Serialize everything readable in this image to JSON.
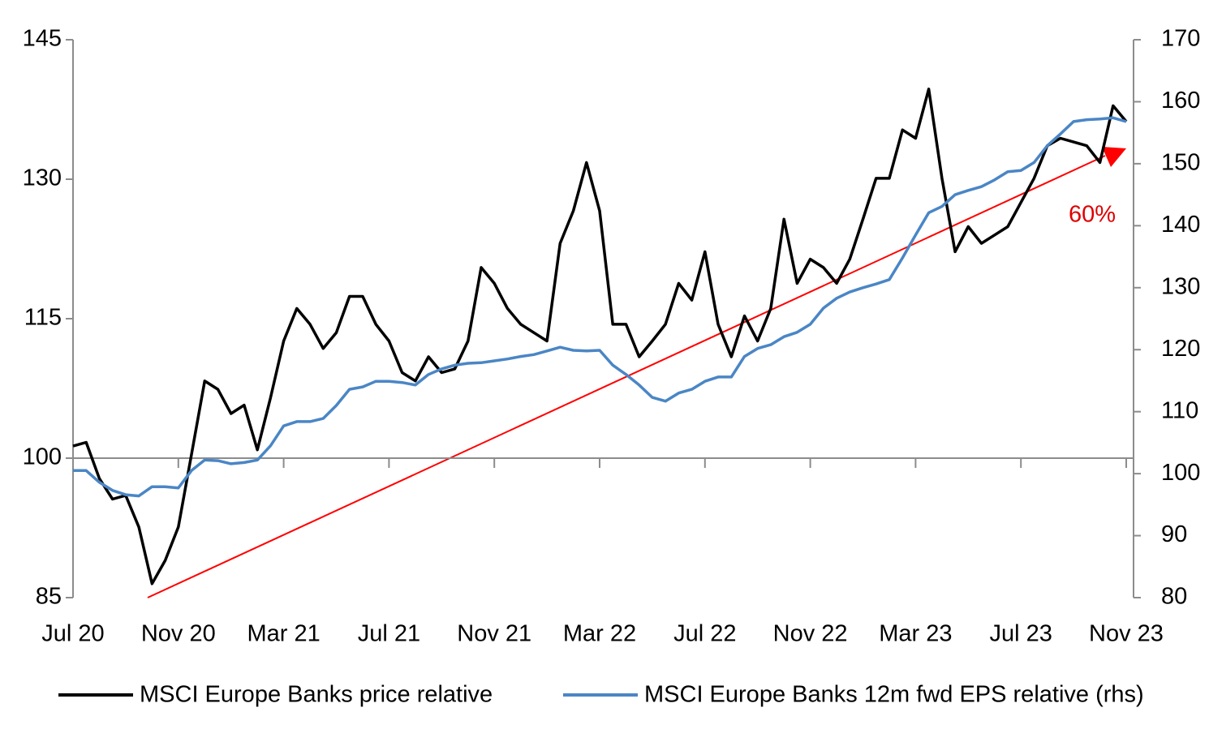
{
  "chart_data": {
    "type": "line",
    "x": [
      "Jul 20",
      null,
      null,
      null,
      null,
      null,
      null,
      null,
      "Nov 20",
      null,
      null,
      null,
      null,
      null,
      null,
      null,
      "Mar 21",
      null,
      null,
      null,
      null,
      null,
      null,
      null,
      "Jul 21",
      null,
      null,
      null,
      null,
      null,
      null,
      null,
      "Nov 21",
      null,
      null,
      null,
      null,
      null,
      null,
      null,
      "Mar 22",
      null,
      null,
      null,
      null,
      null,
      null,
      null,
      "Jul 22",
      null,
      null,
      null,
      null,
      null,
      null,
      null,
      "Nov 22",
      null,
      null,
      null,
      null,
      null,
      null,
      null,
      "Mar 23",
      null,
      null,
      null,
      null,
      null,
      null,
      null,
      "Jul 23",
      null,
      null,
      null,
      null,
      null,
      null,
      null,
      "Nov 23"
    ],
    "series": [
      {
        "name": "MSCI Europe Banks price relative",
        "color": "#000000",
        "values": [
          101.3,
          101.7,
          97.8,
          95.6,
          96,
          92.6,
          86.5,
          89,
          92.6,
          100.4,
          108.3,
          107.4,
          104.8,
          105.7,
          100.9,
          106.5,
          112.6,
          116.1,
          114.4,
          111.8,
          113.5,
          117.4,
          117.4,
          114.4,
          112.6,
          109.2,
          108.3,
          110.9,
          109.2,
          109.6,
          112.6,
          120.5,
          118.8,
          116.1,
          114.4,
          113.5,
          112.6,
          123.1,
          126.6,
          131.8,
          126.6,
          114.4,
          114.4,
          110.9,
          112.6,
          114.4,
          118.8,
          117,
          122.2,
          114.4,
          110.9,
          115.3,
          112.6,
          116.1,
          125.7,
          118.8,
          121.4,
          120.5,
          118.8,
          121.4,
          125.7,
          130.1,
          130.1,
          135.3,
          134.4,
          139.7,
          130.1,
          122.2,
          124.9,
          123.1,
          124,
          124.9,
          127.5,
          130.1,
          133.6,
          134.4,
          134,
          133.6,
          131.8,
          137.9,
          136.2
        ]
      },
      {
        "name": "MSCI Europe Banks 12m fwd EPS relative (rhs)",
        "color": "#4a86c5",
        "axis": "y2",
        "values": [
          100.5,
          100.5,
          98.6,
          97.3,
          96.6,
          96.4,
          97.9,
          97.9,
          97.7,
          100.5,
          102.2,
          102.1,
          101.6,
          101.8,
          102.2,
          104.5,
          107.7,
          108.4,
          108.4,
          108.9,
          111,
          113.6,
          114,
          114.9,
          114.9,
          114.7,
          114.3,
          116,
          116.9,
          117.5,
          117.8,
          117.9,
          118.2,
          118.5,
          118.9,
          119.2,
          119.8,
          120.4,
          119.9,
          119.8,
          119.9,
          117.5,
          116,
          114.3,
          112.3,
          111.7,
          113,
          113.6,
          114.9,
          115.6,
          115.6,
          118.9,
          120.2,
          120.8,
          122.1,
          122.8,
          124.1,
          126.7,
          128.3,
          129.3,
          130,
          130.6,
          131.3,
          134.8,
          138.5,
          142.1,
          143.1,
          145,
          145.7,
          146.3,
          147.4,
          148.7,
          148.9,
          150.2,
          152.9,
          154.8,
          156.8,
          157.1,
          157.2,
          157.4,
          156.8
        ]
      }
    ],
    "ylim": [
      85,
      145
    ],
    "yticks": [
      85,
      100,
      115,
      130,
      145
    ],
    "y2lim": [
      80,
      170
    ],
    "y2ticks": [
      80,
      90,
      100,
      110,
      120,
      130,
      140,
      150,
      160,
      170
    ],
    "xaxis_crosses": 100,
    "annotation": "60%"
  }
}
